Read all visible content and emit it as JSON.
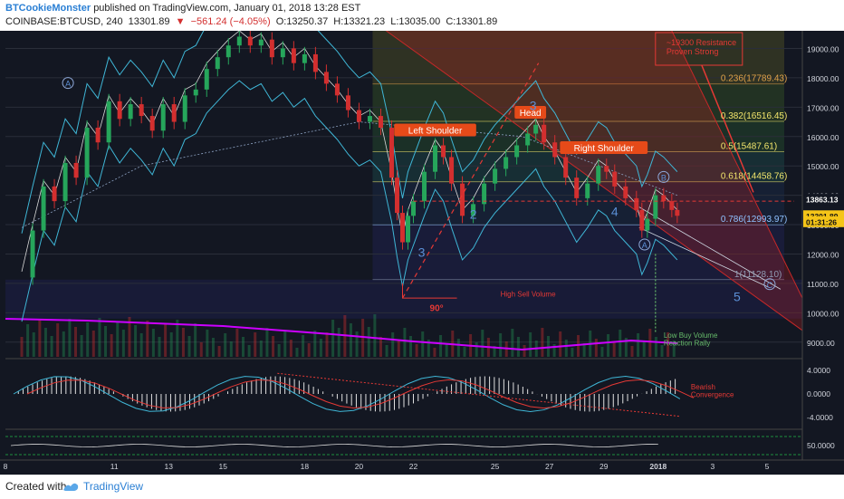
{
  "header": {
    "author": "BTCookieMonster",
    "published_text": "published on TradingView.com, January 01, 2018 13:28 EST",
    "symbol": "COINBASE:BTCUSD, 240",
    "last_price": "13301.89",
    "change": "−561.24 (−4.05%)",
    "open": "O:13250.37",
    "high": "H:13321.23",
    "low": "L:13035.00",
    "close": "C:13301.89"
  },
  "footer": {
    "created_with": "Created with",
    "brand": "TradingView"
  },
  "colors": {
    "background": "#131722",
    "up": "#26a65b",
    "down": "#d32f2f",
    "fib_label": "#f2e56b",
    "pattern_label_bg": "#e64a19",
    "volume_ma": "#cc00ff",
    "wave": "#5b8fd6"
  },
  "chart_data": {
    "type": "candlestick",
    "symbol": "COINBASE:BTCUSD",
    "interval": "240",
    "price_axis": {
      "min": 8500,
      "max": 19600,
      "ticks": [
        19000,
        18000,
        17000,
        16000,
        15000,
        14000,
        13000,
        12000,
        11000,
        10000,
        9000
      ],
      "tick_labels": [
        "19000.00",
        "18000.00",
        "17000.00",
        "16000.00",
        "15000.00",
        "14000.00",
        "13000.00",
        "12000.00",
        "11000.00",
        "10000.00",
        "9000.00"
      ]
    },
    "date_axis": {
      "labels": [
        "8",
        "11",
        "13",
        "15",
        "18",
        "20",
        "22",
        "25",
        "27",
        "29",
        "2018",
        "3",
        "5"
      ],
      "positions": [
        7,
        11,
        13,
        15,
        18,
        20,
        22,
        25,
        27,
        29,
        31,
        33,
        35
      ]
    },
    "price_badges": [
      {
        "label": "13863.13",
        "value": 13863.13,
        "style": "dark"
      },
      {
        "label": "13301.89",
        "value": 13301.89,
        "style": "highlight"
      },
      {
        "label": "01:31:26",
        "value": 13100,
        "style": "highlight"
      }
    ],
    "price_series": [
      [
        7.6,
        11200
      ],
      [
        8.0,
        12800
      ],
      [
        8.4,
        14300
      ],
      [
        8.8,
        13800
      ],
      [
        9.2,
        15100
      ],
      [
        9.6,
        14600
      ],
      [
        10.0,
        16300
      ],
      [
        10.4,
        15800
      ],
      [
        10.8,
        17200
      ],
      [
        11.2,
        16600
      ],
      [
        11.6,
        17100
      ],
      [
        12.0,
        16700
      ],
      [
        12.4,
        16200
      ],
      [
        12.8,
        17100
      ],
      [
        13.2,
        16500
      ],
      [
        13.6,
        17400
      ],
      [
        14.0,
        17600
      ],
      [
        14.4,
        18300
      ],
      [
        14.8,
        18700
      ],
      [
        15.2,
        19100
      ],
      [
        15.6,
        19400
      ],
      [
        16.0,
        19100
      ],
      [
        16.4,
        19300
      ],
      [
        16.8,
        18700
      ],
      [
        17.2,
        19000
      ],
      [
        17.6,
        18500
      ],
      [
        18.0,
        18800
      ],
      [
        18.4,
        18200
      ],
      [
        18.8,
        17800
      ],
      [
        19.2,
        17400
      ],
      [
        19.6,
        16900
      ],
      [
        20.0,
        16500
      ],
      [
        20.4,
        16700
      ],
      [
        20.8,
        16300
      ],
      [
        21.2,
        14600
      ],
      [
        21.4,
        13400
      ],
      [
        21.6,
        12400
      ],
      [
        21.8,
        13300
      ],
      [
        22.0,
        13800
      ],
      [
        22.4,
        14800
      ],
      [
        22.8,
        15700
      ],
      [
        23.1,
        15300
      ],
      [
        23.4,
        14400
      ],
      [
        23.8,
        13300
      ],
      [
        24.2,
        13700
      ],
      [
        24.6,
        14400
      ],
      [
        25.0,
        14900
      ],
      [
        25.4,
        15300
      ],
      [
        25.8,
        15700
      ],
      [
        26.2,
        16100
      ],
      [
        26.5,
        16400
      ],
      [
        26.8,
        15800
      ],
      [
        27.2,
        15300
      ],
      [
        27.6,
        14600
      ],
      [
        28.0,
        13900
      ],
      [
        28.4,
        14400
      ],
      [
        28.8,
        15000
      ],
      [
        29.1,
        14800
      ],
      [
        29.4,
        14300
      ],
      [
        29.8,
        13900
      ],
      [
        30.2,
        13500
      ],
      [
        30.4,
        12800
      ],
      [
        30.6,
        13200
      ],
      [
        30.9,
        14000
      ],
      [
        31.2,
        13800
      ],
      [
        31.5,
        13500
      ],
      [
        31.7,
        13301.89
      ]
    ],
    "fibonacci": [
      {
        "ratio": "0.236",
        "value": 17789.43,
        "label": "0.236(17789.43)"
      },
      {
        "ratio": "0.382",
        "value": 16516.45,
        "label": "0.382(16516.45)"
      },
      {
        "ratio": "0.5",
        "value": 15487.61,
        "label": "0.5(15487.61)"
      },
      {
        "ratio": "0.618",
        "value": 14458.76,
        "label": "0.618(14458.76)"
      },
      {
        "ratio": "0.786",
        "value": 12993.97,
        "label": "0.786(12993.97)"
      },
      {
        "ratio": "1",
        "value": 11128.1,
        "label": "1(11128.10)"
      }
    ],
    "annotations": {
      "resistance_note": "~19300 Resistance\nProven Strong",
      "left_shoulder": "Left Shoulder",
      "head": "Head",
      "right_shoulder": "Right Shoulder",
      "angle": "90°",
      "high_sell_volume": "High Sell Volume",
      "low_buy_volume": "Low Buy Volume\nReaction Rally",
      "bearish_convergence": "Bearish\nConvergence",
      "wave_labels": [
        {
          "text": "A",
          "circled": true,
          "t": 9.3,
          "p": 17700
        },
        {
          "text": "3",
          "circled": false,
          "t": 22.3,
          "p": 11900
        },
        {
          "text": "2",
          "circled": false,
          "t": 24.2,
          "p": 13200
        },
        {
          "text": "3",
          "circled": false,
          "t": 26.4,
          "p": 16900
        },
        {
          "text": "4",
          "circled": false,
          "t": 29.4,
          "p": 13300
        },
        {
          "text": "A",
          "circled": true,
          "t": 30.5,
          "p": 12200
        },
        {
          "text": "B",
          "circled": true,
          "t": 31.2,
          "p": 14500
        },
        {
          "text": "5",
          "circled": false,
          "t": 33.9,
          "p": 10400
        },
        {
          "text": "C",
          "circled": true,
          "t": 35.1,
          "p": 10850
        }
      ]
    },
    "macd": {
      "ticks": [
        4,
        0,
        -4
      ],
      "tick_labels": [
        "4.0000",
        "0.0000",
        "-4.0000"
      ]
    },
    "rsi": {
      "ticks": [
        50
      ],
      "tick_labels": [
        "50.0000"
      ]
    }
  }
}
